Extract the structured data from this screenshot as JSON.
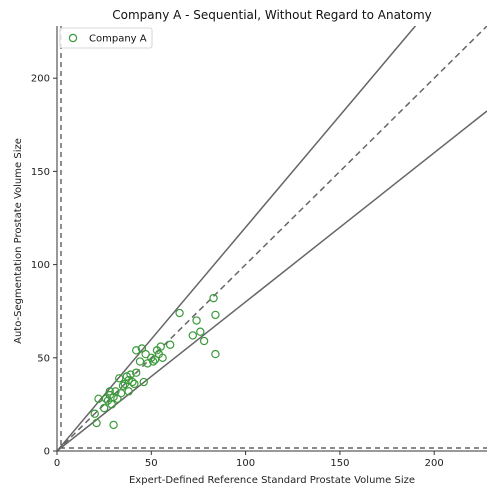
{
  "chart_data": {
    "type": "scatter",
    "title": "Company A - Sequential, Without Regard to Anatomy",
    "xlabel": "Expert-Defined Reference Standard Prostate Volume Size",
    "ylabel": "Auto-Segmentation Prostate Volume Size",
    "xlim": [
      0,
      228
    ],
    "ylim": [
      0,
      228
    ],
    "xticks": [
      0,
      50,
      100,
      150,
      200
    ],
    "yticks": [
      0,
      50,
      100,
      150,
      200
    ],
    "grid": false,
    "legend": {
      "position": "top-left",
      "entries": [
        "Company A"
      ]
    },
    "reference_lines": [
      {
        "kind": "identity",
        "slope": 1.0,
        "style": "dashed"
      },
      {
        "kind": "upper-bound",
        "slope": 1.2,
        "style": "solid"
      },
      {
        "kind": "lower-bound",
        "slope": 0.8,
        "style": "solid"
      }
    ],
    "colors": {
      "marker": "#3a9a3a",
      "lines": "#666666",
      "axes": "#333333"
    },
    "series": [
      {
        "name": "Company A",
        "marker": "open-circle",
        "points": [
          [
            20,
            20
          ],
          [
            21,
            15
          ],
          [
            22,
            28
          ],
          [
            25,
            23
          ],
          [
            26,
            28
          ],
          [
            27,
            27
          ],
          [
            28,
            30
          ],
          [
            28,
            32
          ],
          [
            29,
            25
          ],
          [
            30,
            29
          ],
          [
            30,
            14
          ],
          [
            31,
            32
          ],
          [
            32,
            28
          ],
          [
            33,
            39
          ],
          [
            34,
            31
          ],
          [
            35,
            35
          ],
          [
            36,
            36
          ],
          [
            37,
            40
          ],
          [
            38,
            38
          ],
          [
            38,
            32
          ],
          [
            39,
            41
          ],
          [
            40,
            37
          ],
          [
            41,
            36
          ],
          [
            42,
            42
          ],
          [
            42,
            54
          ],
          [
            44,
            48
          ],
          [
            45,
            55
          ],
          [
            46,
            37
          ],
          [
            47,
            52
          ],
          [
            48,
            47
          ],
          [
            50,
            50
          ],
          [
            51,
            48
          ],
          [
            52,
            49
          ],
          [
            53,
            54
          ],
          [
            54,
            52
          ],
          [
            55,
            56
          ],
          [
            56,
            50
          ],
          [
            60,
            57
          ],
          [
            65,
            74
          ],
          [
            72,
            62
          ],
          [
            74,
            70
          ],
          [
            76,
            64
          ],
          [
            78,
            59
          ],
          [
            83,
            82
          ],
          [
            84,
            73
          ],
          [
            84,
            52
          ]
        ]
      }
    ]
  }
}
